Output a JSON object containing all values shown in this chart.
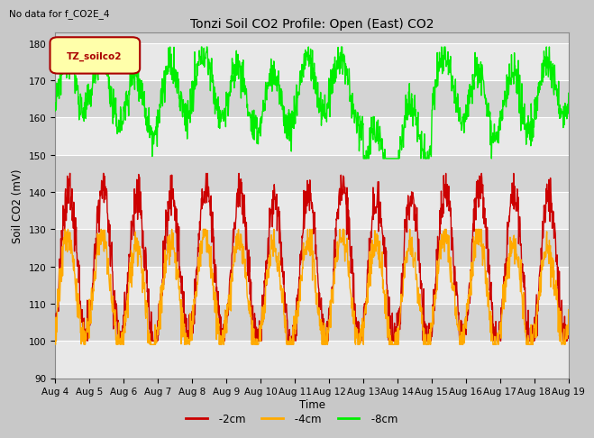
{
  "title": "Tonzi Soil CO2 Profile: Open (East) CO2",
  "subtitle": "No data for f_CO2E_4",
  "ylabel": "Soil CO2 (mV)",
  "xlabel": "Time",
  "ylim": [
    90,
    183
  ],
  "yticks": [
    90,
    100,
    110,
    120,
    130,
    140,
    150,
    160,
    170,
    180
  ],
  "date_start": 4,
  "date_end": 19,
  "bg_color": "#c8c8c8",
  "plot_bg_color": "#d4d4d4",
  "series": {
    "-2cm": {
      "color": "#cc0000",
      "lw": 1.0
    },
    "-4cm": {
      "color": "#ffaa00",
      "lw": 1.0
    },
    "-8cm": {
      "color": "#00ee00",
      "lw": 1.0
    }
  },
  "legend_label": "TZ_soilco2",
  "legend_box_color": "#ffffaa",
  "legend_box_border": "#aa0000"
}
